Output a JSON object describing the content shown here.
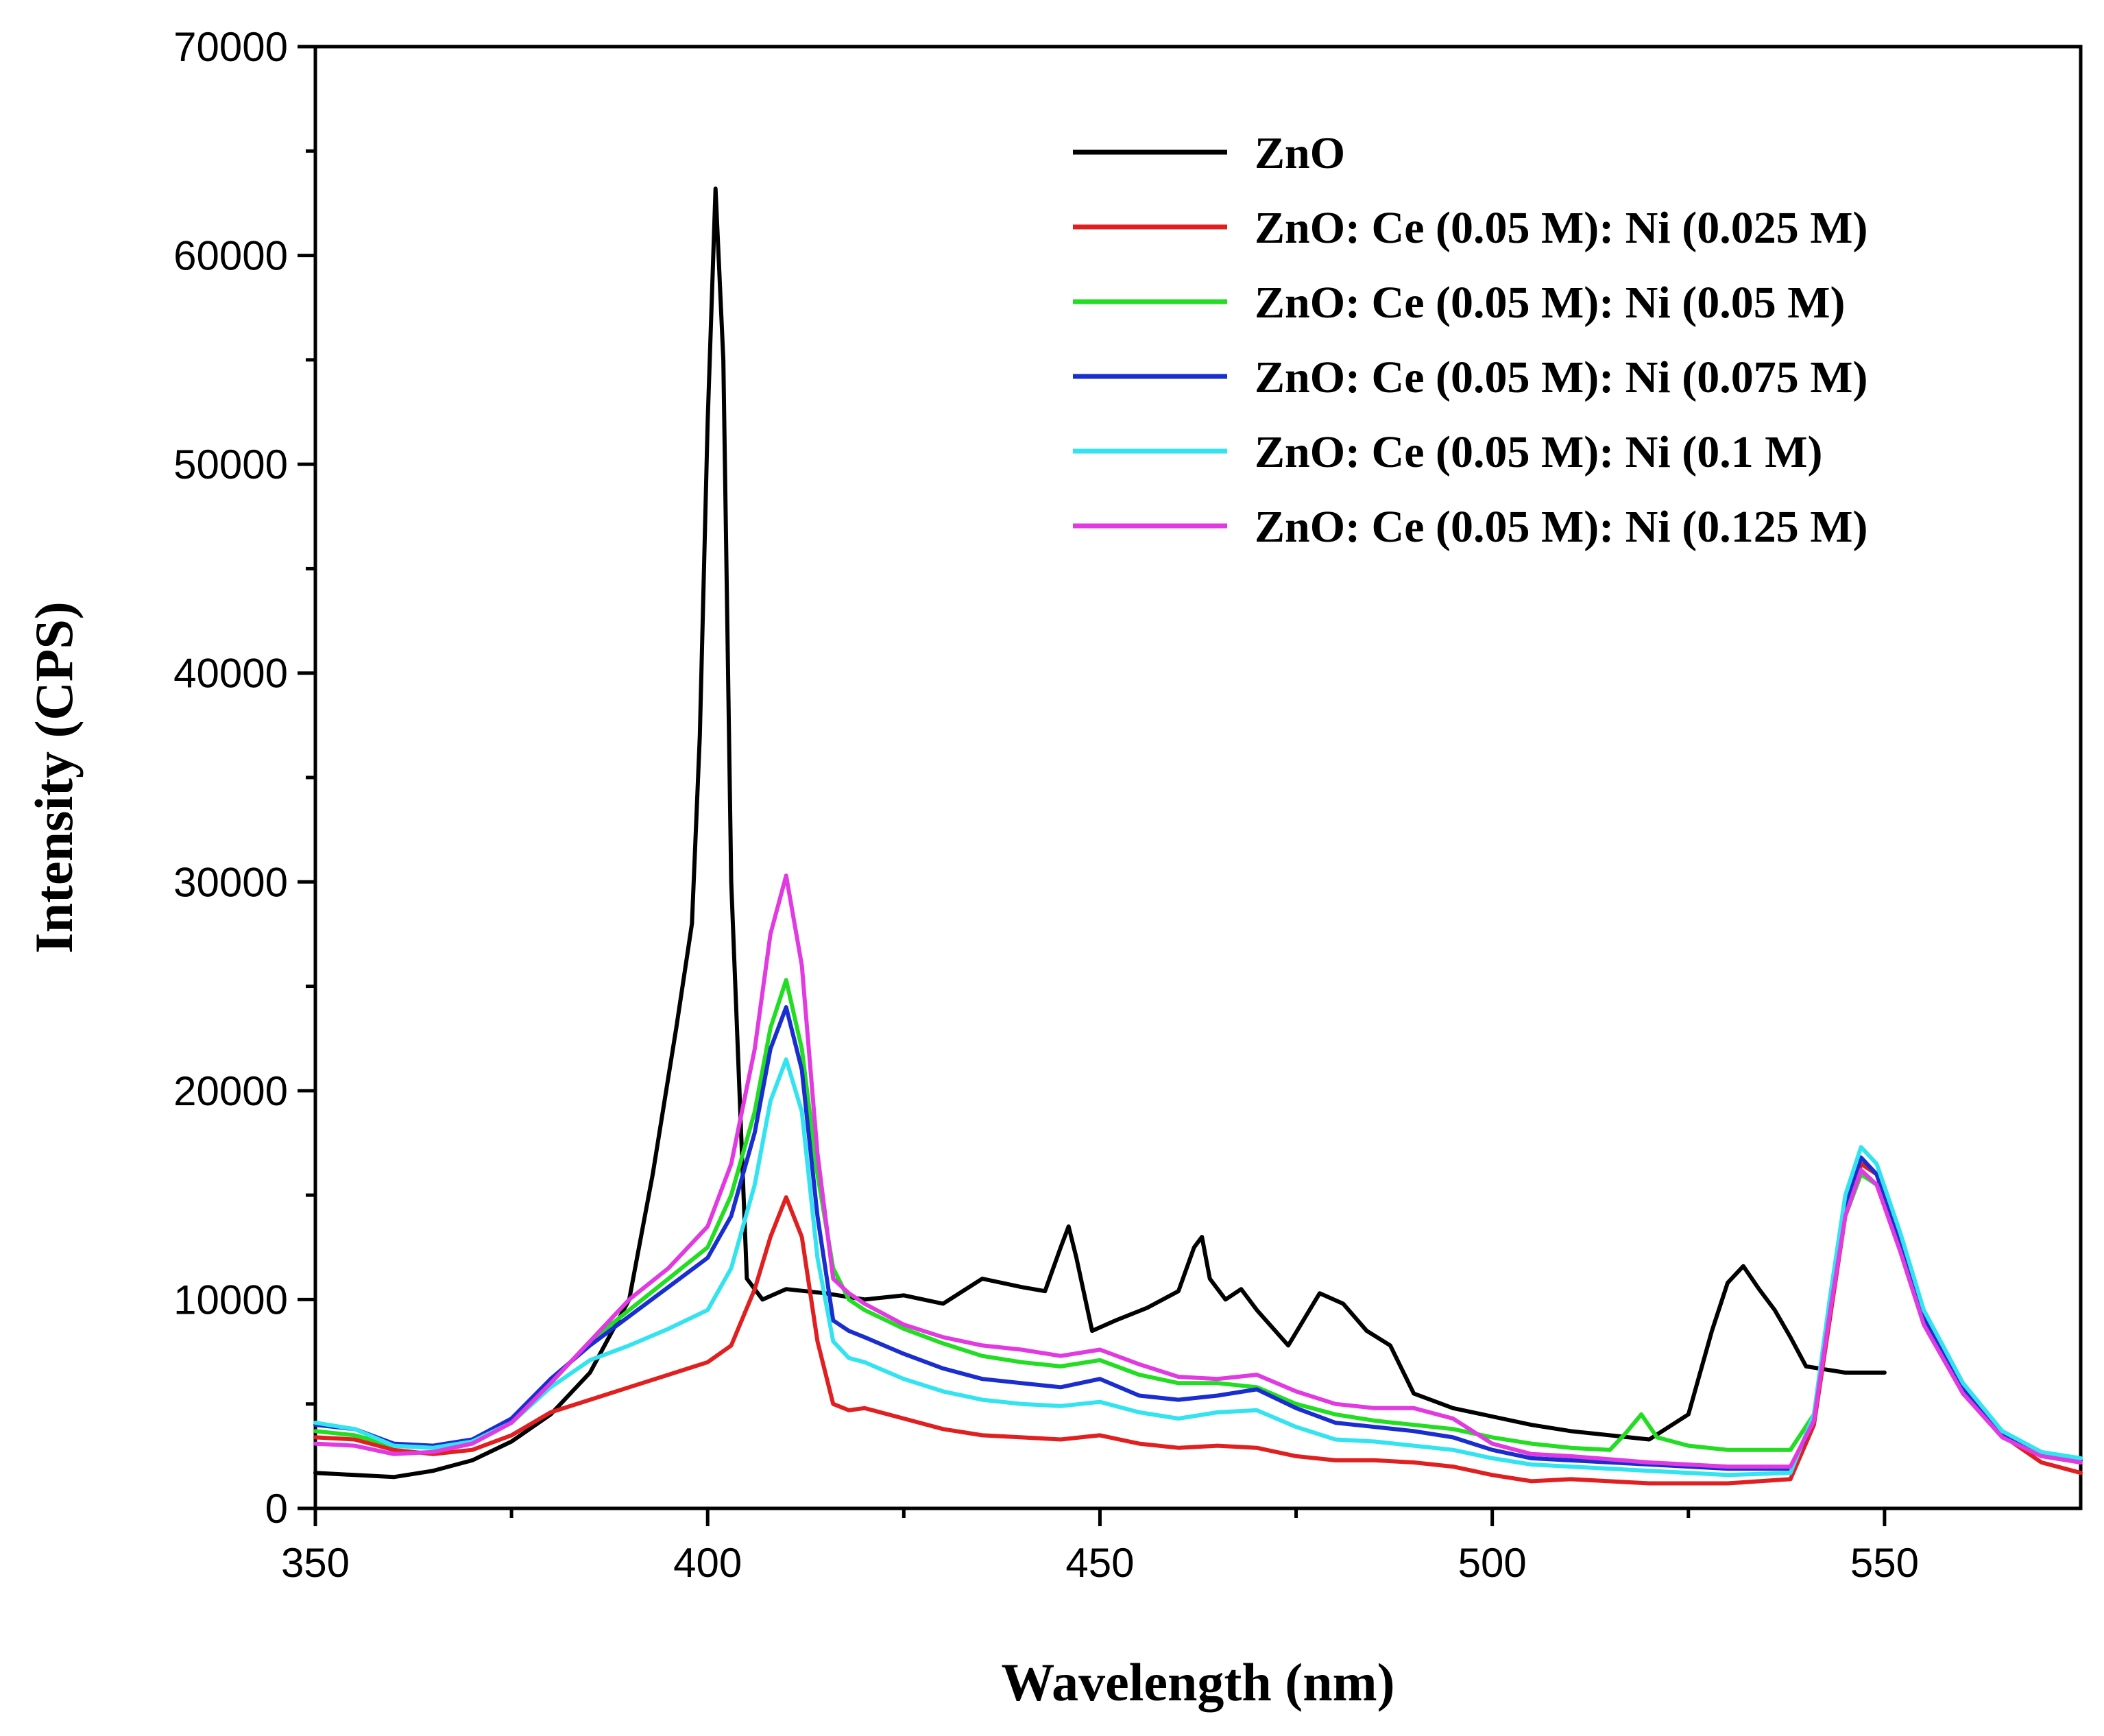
{
  "chart_data": {
    "type": "line",
    "title": "",
    "xlabel": "Wavelength (nm)",
    "ylabel": "Intensity (CPS)",
    "xlim": [
      350,
      575
    ],
    "ylim": [
      0,
      70000
    ],
    "xticks": [
      350,
      400,
      450,
      500,
      550
    ],
    "xtick_labels": [
      "350",
      "400",
      "450",
      "500",
      "550"
    ],
    "yticks": [
      0,
      10000,
      20000,
      30000,
      40000,
      50000,
      60000,
      70000
    ],
    "ytick_labels": [
      "0",
      "10000",
      "20000",
      "30000",
      "40000",
      "50000",
      "60000",
      "70000"
    ],
    "grid": false,
    "legend_position": "top-right",
    "series": [
      {
        "name": "ZnO",
        "color": "#000000",
        "x": [
          350,
          355,
          360,
          365,
          370,
          375,
          380,
          385,
          390,
          393,
          396,
          398,
          399,
          400,
          401,
          402,
          403,
          405,
          407,
          410,
          415,
          420,
          425,
          430,
          435,
          440,
          443,
          445,
          446,
          447,
          449,
          452,
          456,
          460,
          462,
          463,
          464,
          466,
          468,
          470,
          474,
          478,
          481,
          484,
          487,
          490,
          495,
          500,
          505,
          510,
          520,
          525,
          528,
          530,
          532,
          534,
          536,
          538,
          540,
          545,
          550
        ],
        "y": [
          1700,
          1600,
          1500,
          1800,
          2300,
          3200,
          4500,
          6500,
          10000,
          16000,
          23000,
          28000,
          37000,
          52000,
          63200,
          55000,
          30000,
          11000,
          10000,
          10500,
          10300,
          10000,
          10200,
          9800,
          11000,
          10600,
          10400,
          12500,
          13500,
          12000,
          8500,
          9000,
          9600,
          10400,
          12500,
          13000,
          11000,
          10000,
          10500,
          9500,
          7800,
          10300,
          9800,
          8500,
          7800,
          5500,
          4800,
          4400,
          4000,
          3700,
          3300,
          4500,
          8500,
          10800,
          11600,
          10500,
          9500,
          8200,
          6800,
          6500,
          6500
        ]
      },
      {
        "name": "ZnO: Ce (0.05 M): Ni (0.025 M)",
        "color": "#e02020",
        "x": [
          350,
          355,
          360,
          365,
          370,
          375,
          380,
          385,
          390,
          395,
          400,
          403,
          406,
          408,
          410,
          412,
          414,
          416,
          418,
          420,
          425,
          430,
          435,
          440,
          445,
          450,
          455,
          460,
          465,
          470,
          475,
          480,
          485,
          490,
          495,
          500,
          505,
          510,
          520,
          530,
          538,
          541,
          543,
          545,
          547,
          549,
          552,
          555,
          560,
          565,
          570,
          575
        ],
        "y": [
          3400,
          3300,
          2800,
          2600,
          2800,
          3500,
          4600,
          5200,
          5800,
          6400,
          7000,
          7800,
          10500,
          13000,
          14900,
          13000,
          8000,
          5000,
          4700,
          4800,
          4300,
          3800,
          3500,
          3400,
          3300,
          3500,
          3100,
          2900,
          3000,
          2900,
          2500,
          2300,
          2300,
          2200,
          2000,
          1600,
          1300,
          1400,
          1200,
          1200,
          1400,
          4000,
          9000,
          14000,
          16500,
          16000,
          12500,
          9000,
          5500,
          3500,
          2200,
          1700
        ]
      },
      {
        "name": "ZnO: Ce (0.05 M): Ni (0.05 M)",
        "color": "#22dd22",
        "x": [
          350,
          355,
          360,
          365,
          370,
          375,
          380,
          385,
          390,
          395,
          400,
          403,
          406,
          408,
          410,
          412,
          414,
          416,
          418,
          420,
          425,
          430,
          435,
          440,
          445,
          450,
          455,
          460,
          465,
          470,
          475,
          480,
          485,
          490,
          495,
          500,
          505,
          510,
          515,
          517,
          519,
          521,
          525,
          530,
          538,
          541,
          543,
          545,
          547,
          549,
          552,
          555,
          560,
          565,
          570,
          575
        ],
        "y": [
          3700,
          3500,
          3000,
          2900,
          3200,
          4200,
          6000,
          8000,
          9500,
          11000,
          12500,
          15000,
          19000,
          23000,
          25300,
          22000,
          16000,
          11500,
          10000,
          9500,
          8600,
          7900,
          7300,
          7000,
          6800,
          7100,
          6400,
          6000,
          6000,
          5800,
          5000,
          4500,
          4200,
          4000,
          3800,
          3400,
          3100,
          2900,
          2800,
          3600,
          4500,
          3400,
          3000,
          2800,
          2800,
          4500,
          9500,
          14000,
          16000,
          15500,
          12500,
          9000,
          5600,
          3500,
          2600,
          2200
        ]
      },
      {
        "name": "ZnO: Ce (0.05 M): Ni (0.075 M)",
        "color": "#1a2ecf",
        "x": [
          350,
          355,
          360,
          365,
          370,
          375,
          380,
          385,
          390,
          395,
          400,
          403,
          406,
          408,
          410,
          412,
          414,
          416,
          418,
          420,
          425,
          430,
          435,
          440,
          445,
          450,
          455,
          460,
          465,
          470,
          475,
          480,
          485,
          490,
          495,
          500,
          505,
          510,
          520,
          530,
          538,
          541,
          543,
          545,
          547,
          549,
          552,
          555,
          560,
          565,
          570,
          575
        ],
        "y": [
          4000,
          3800,
          3100,
          3000,
          3300,
          4300,
          6200,
          7800,
          9200,
          10600,
          12000,
          14000,
          18000,
          22000,
          24000,
          21000,
          14000,
          9000,
          8500,
          8200,
          7400,
          6700,
          6200,
          6000,
          5800,
          6200,
          5400,
          5200,
          5400,
          5700,
          4800,
          4100,
          3900,
          3700,
          3400,
          2800,
          2400,
          2300,
          2100,
          1900,
          1900,
          4200,
          9500,
          14500,
          16800,
          16000,
          12800,
          9200,
          5800,
          3600,
          2600,
          2300
        ]
      },
      {
        "name": "ZnO: Ce (0.05 M): Ni (0.1 M)",
        "color": "#33e3ef",
        "x": [
          350,
          355,
          360,
          365,
          370,
          375,
          380,
          385,
          390,
          395,
          400,
          403,
          406,
          408,
          410,
          412,
          414,
          416,
          418,
          420,
          425,
          430,
          435,
          440,
          445,
          450,
          455,
          460,
          465,
          470,
          475,
          480,
          485,
          490,
          495,
          500,
          505,
          510,
          520,
          530,
          538,
          541,
          543,
          545,
          547,
          549,
          552,
          555,
          560,
          565,
          570,
          575
        ],
        "y": [
          4100,
          3800,
          3000,
          2900,
          3200,
          4100,
          5800,
          7100,
          7800,
          8600,
          9500,
          11500,
          15500,
          19500,
          21500,
          19000,
          12000,
          8000,
          7200,
          7000,
          6200,
          5600,
          5200,
          5000,
          4900,
          5100,
          4600,
          4300,
          4600,
          4700,
          3900,
          3300,
          3200,
          3000,
          2800,
          2400,
          2100,
          2000,
          1800,
          1600,
          1700,
          4500,
          10000,
          15000,
          17300,
          16500,
          13200,
          9500,
          6000,
          3700,
          2700,
          2400
        ]
      },
      {
        "name": "ZnO: Ce (0.05 M): Ni (0.125 M)",
        "color": "#e03ae0",
        "x": [
          350,
          355,
          360,
          365,
          370,
          375,
          380,
          385,
          390,
          395,
          400,
          403,
          406,
          408,
          410,
          412,
          414,
          416,
          418,
          420,
          425,
          430,
          435,
          440,
          445,
          450,
          455,
          460,
          465,
          470,
          475,
          480,
          485,
          490,
          495,
          500,
          505,
          510,
          520,
          530,
          538,
          541,
          543,
          545,
          547,
          549,
          552,
          555,
          560,
          565,
          570,
          575
        ],
        "y": [
          3100,
          3000,
          2600,
          2700,
          3100,
          4100,
          6000,
          8000,
          10000,
          11500,
          13500,
          16500,
          22000,
          27500,
          30300,
          26000,
          17000,
          11000,
          10300,
          9800,
          8800,
          8200,
          7800,
          7600,
          7300,
          7600,
          6900,
          6300,
          6200,
          6400,
          5600,
          5000,
          4800,
          4800,
          4300,
          3100,
          2600,
          2500,
          2200,
          2000,
          2000,
          4200,
          9300,
          14000,
          16200,
          15500,
          12300,
          8800,
          5500,
          3400,
          2500,
          2200
        ]
      }
    ]
  }
}
